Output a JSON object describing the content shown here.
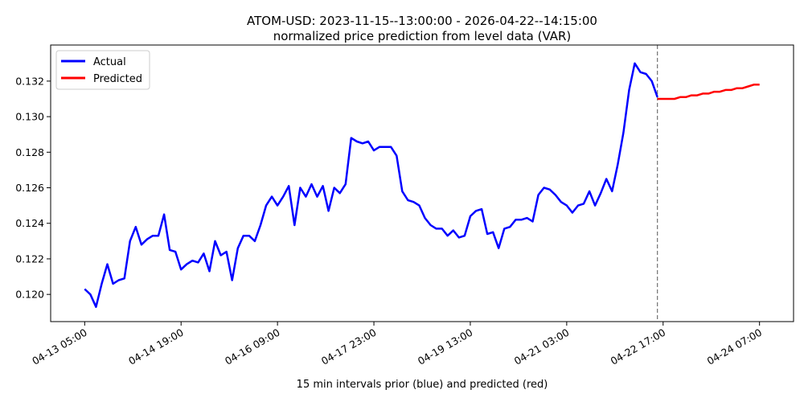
{
  "chart_data": {
    "type": "line",
    "title": "ATOM-USD: 2023-11-15--13:00:00 - 2026-04-22--14:15:00",
    "subtitle": "normalized price prediction from level data (VAR)",
    "xlabel": "15 min intervals prior (blue) and predicted (red)",
    "ylabel": "",
    "xlim": [
      -48,
      1000
    ],
    "ylim": [
      0.11847,
      0.13403
    ],
    "x_ticks": [
      0,
      136,
      272,
      408,
      544,
      680,
      816,
      952
    ],
    "x_tick_labels": [
      "04-13 05:00",
      "04-14 19:00",
      "04-16 09:00",
      "04-17 23:00",
      "04-19 13:00",
      "04-21 03:00",
      "04-22 17:00",
      "04-24 07:00"
    ],
    "y_ticks": [
      0.12,
      0.122,
      0.124,
      0.126,
      0.128,
      0.13,
      0.132
    ],
    "y_tick_labels": [
      "0.120",
      "0.122",
      "0.124",
      "0.126",
      "0.128",
      "0.130",
      "0.132"
    ],
    "grid": false,
    "legend": {
      "placement": "top-left",
      "entries": [
        "Actual",
        "Predicted"
      ]
    },
    "forecast_start_marker": 808,
    "series": [
      {
        "name": "Actual",
        "color": "#0000ff",
        "x_start": 0,
        "x_step": 8,
        "values": [
          0.1203,
          0.12,
          0.1193,
          0.1206,
          0.1217,
          0.1206,
          0.1208,
          0.1209,
          0.123,
          0.1238,
          0.1228,
          0.1231,
          0.1233,
          0.1233,
          0.1245,
          0.1225,
          0.1224,
          0.1214,
          0.1217,
          0.1219,
          0.1218,
          0.1223,
          0.1213,
          0.123,
          0.1222,
          0.1224,
          0.1208,
          0.1226,
          0.1233,
          0.1233,
          0.123,
          0.1239,
          0.125,
          0.1255,
          0.125,
          0.1255,
          0.1261,
          0.1239,
          0.126,
          0.1255,
          0.1262,
          0.1255,
          0.1261,
          0.1247,
          0.126,
          0.1257,
          0.1262,
          0.1288,
          0.1286,
          0.1285,
          0.1286,
          0.1281,
          0.1283,
          0.1283,
          0.1283,
          0.1278,
          0.1258,
          0.1253,
          0.1252,
          0.125,
          0.1243,
          0.1239,
          0.1237,
          0.1237,
          0.1233,
          0.1236,
          0.1232,
          0.1233,
          0.1244,
          0.1247,
          0.1248,
          0.1234,
          0.1235,
          0.1226,
          0.1237,
          0.1238,
          0.1242,
          0.1242,
          0.1243,
          0.1241,
          0.1256,
          0.126,
          0.1259,
          0.1256,
          0.1252,
          0.125,
          0.1246,
          0.125,
          0.1251,
          0.1258,
          0.125,
          0.1257,
          0.1265,
          0.1258,
          0.1273,
          0.1291,
          0.1315,
          0.133,
          0.1325,
          0.1324,
          0.132,
          0.1311
        ]
      },
      {
        "name": "Predicted",
        "color": "#ff0000",
        "x_start": 808,
        "x_step": 8,
        "values": [
          0.131,
          0.131,
          0.131,
          0.131,
          0.1311,
          0.1311,
          0.1312,
          0.1312,
          0.1313,
          0.1313,
          0.1314,
          0.1314,
          0.1315,
          0.1315,
          0.1316,
          0.1316,
          0.1317,
          0.1318,
          0.1318
        ]
      }
    ]
  }
}
